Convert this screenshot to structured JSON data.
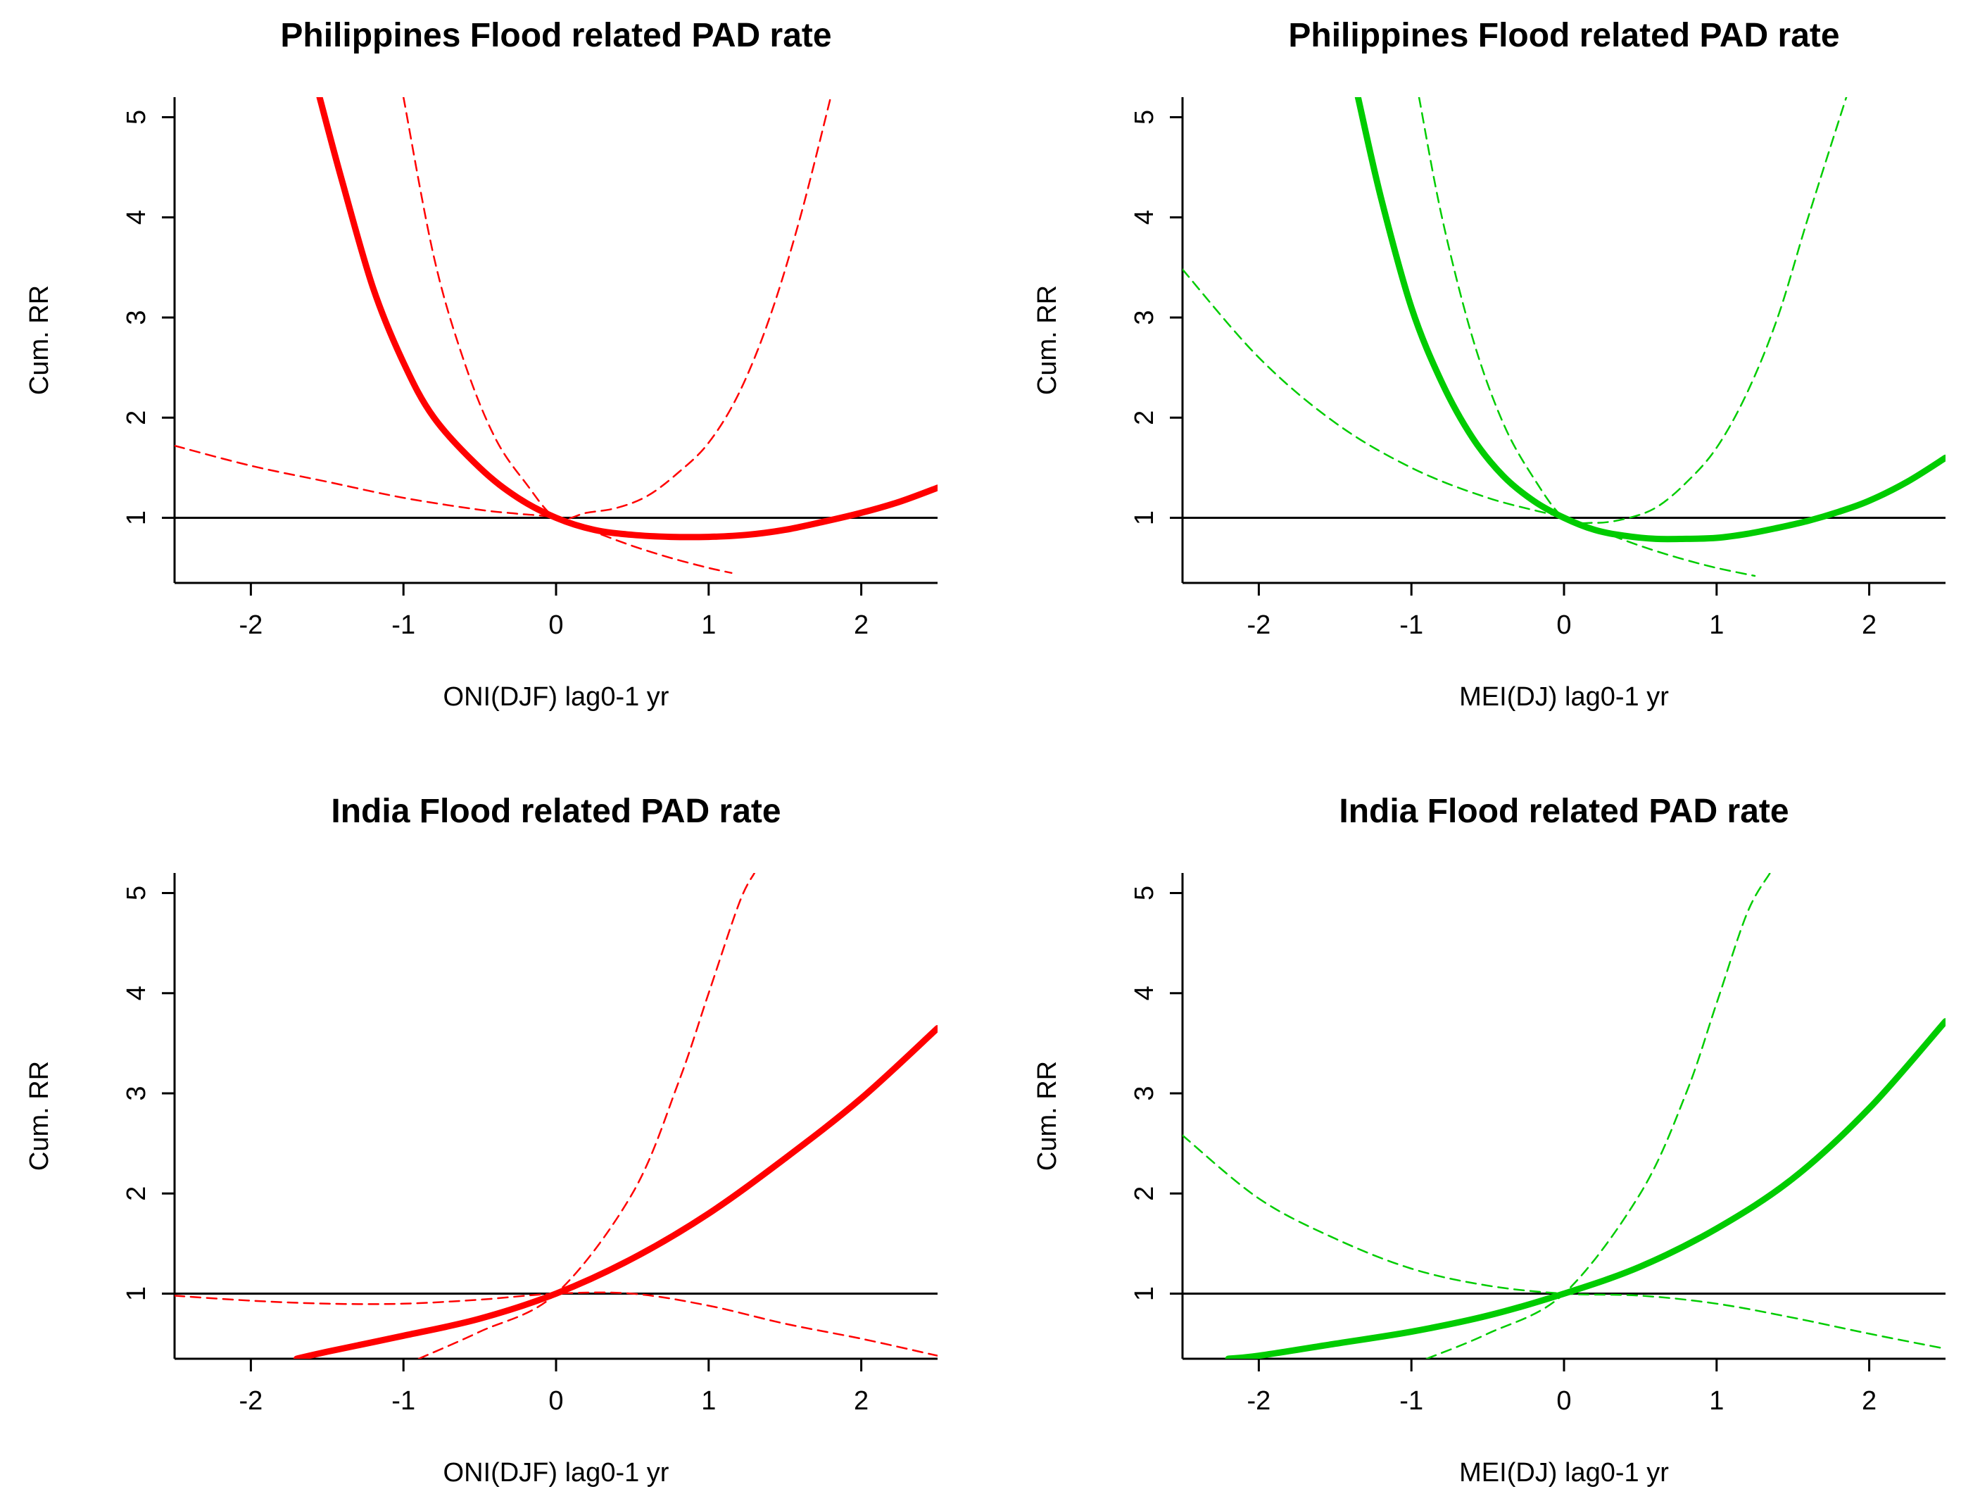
{
  "chart_data": [
    {
      "type": "line",
      "title": "Philippines Flood related PAD rate",
      "xlabel": "ONI(DJF) lag0-1 yr",
      "ylabel": "Cum. RR",
      "xlim": [
        -2.5,
        2.5
      ],
      "ylim": [
        0.35,
        5.2
      ],
      "xticks": [
        -2,
        -1,
        0,
        1,
        2
      ],
      "xtick_labels": [
        "-2",
        "-1",
        "0",
        "1",
        "2"
      ],
      "yticks": [
        1,
        2,
        3,
        4,
        5
      ],
      "ytick_labels": [
        "1",
        "2",
        "3",
        "4",
        "5"
      ],
      "reference_line": 1,
      "color": "#ff0000",
      "series": [
        {
          "name": "RR",
          "style": "solid",
          "x": [
            -1.55,
            -1.4,
            -1.2,
            -1.0,
            -0.8,
            -0.5,
            -0.25,
            0,
            0.25,
            0.5,
            0.75,
            1.0,
            1.25,
            1.5,
            1.75,
            2.0,
            2.25,
            2.5
          ],
          "y": [
            5.2,
            4.35,
            3.3,
            2.55,
            2.0,
            1.5,
            1.2,
            1.0,
            0.88,
            0.83,
            0.81,
            0.81,
            0.83,
            0.88,
            0.96,
            1.05,
            1.16,
            1.3
          ]
        },
        {
          "name": "95% CI lower",
          "style": "dashed",
          "x": [
            -2.5,
            -2.0,
            -1.5,
            -1.0,
            -0.5,
            -0.25,
            0,
            0.25,
            0.5,
            0.75,
            1.0,
            1.15
          ],
          "y": [
            1.72,
            1.52,
            1.36,
            1.2,
            1.08,
            1.04,
            1.0,
            0.86,
            0.72,
            0.6,
            0.5,
            0.45
          ]
        },
        {
          "name": "95% CI upper",
          "style": "dashed",
          "x": [
            -1.0,
            -0.8,
            -0.6,
            -0.4,
            -0.2,
            0,
            0.2,
            0.4,
            0.6,
            0.8,
            1.0,
            1.2,
            1.4,
            1.6,
            1.8
          ],
          "y": [
            5.2,
            3.6,
            2.55,
            1.8,
            1.35,
            1.0,
            1.05,
            1.1,
            1.22,
            1.45,
            1.75,
            2.25,
            3.0,
            4.0,
            5.2
          ]
        }
      ]
    },
    {
      "type": "line",
      "title": "Philippines Flood related PAD rate",
      "xlabel": "MEI(DJ) lag0-1 yr",
      "ylabel": "Cum. RR",
      "xlim": [
        -2.5,
        2.5
      ],
      "ylim": [
        0.35,
        5.2
      ],
      "xticks": [
        -2,
        -1,
        0,
        1,
        2
      ],
      "xtick_labels": [
        "-2",
        "-1",
        "0",
        "1",
        "2"
      ],
      "yticks": [
        1,
        2,
        3,
        4,
        5
      ],
      "ytick_labels": [
        "1",
        "2",
        "3",
        "4",
        "5"
      ],
      "reference_line": 1,
      "color": "#00cc00",
      "series": [
        {
          "name": "RR",
          "style": "solid",
          "x": [
            -1.35,
            -1.2,
            -1.0,
            -0.8,
            -0.6,
            -0.4,
            -0.2,
            0,
            0.2,
            0.4,
            0.6,
            0.8,
            1.0,
            1.2,
            1.4,
            1.6,
            1.8,
            2.0,
            2.25,
            2.5
          ],
          "y": [
            5.2,
            4.2,
            3.1,
            2.35,
            1.8,
            1.42,
            1.17,
            1.0,
            0.88,
            0.82,
            0.79,
            0.79,
            0.8,
            0.84,
            0.9,
            0.97,
            1.06,
            1.17,
            1.36,
            1.6
          ]
        },
        {
          "name": "95% CI lower",
          "style": "dashed",
          "x": [
            -2.5,
            -2.0,
            -1.5,
            -1.0,
            -0.5,
            0,
            0.25,
            0.5,
            0.75,
            1.0,
            1.25
          ],
          "y": [
            3.48,
            2.6,
            1.95,
            1.5,
            1.2,
            1.0,
            0.86,
            0.72,
            0.6,
            0.5,
            0.42
          ]
        },
        {
          "name": "95% CI upper",
          "style": "dashed",
          "x": [
            -0.95,
            -0.8,
            -0.6,
            -0.4,
            -0.2,
            0,
            0.2,
            0.4,
            0.6,
            0.8,
            1.0,
            1.2,
            1.4,
            1.6,
            1.85
          ],
          "y": [
            5.2,
            4.0,
            2.8,
            1.95,
            1.4,
            1.0,
            0.95,
            0.99,
            1.1,
            1.35,
            1.7,
            2.25,
            3.0,
            4.0,
            5.2
          ]
        }
      ]
    },
    {
      "type": "line",
      "title": "India Flood related PAD rate",
      "xlabel": "ONI(DJF) lag0-1 yr",
      "ylabel": "Cum. RR",
      "xlim": [
        -2.5,
        2.5
      ],
      "ylim": [
        0.35,
        5.2
      ],
      "xticks": [
        -2,
        -1,
        0,
        1,
        2
      ],
      "xtick_labels": [
        "-2",
        "-1",
        "0",
        "1",
        "2"
      ],
      "yticks": [
        1,
        2,
        3,
        4,
        5
      ],
      "ytick_labels": [
        "1",
        "2",
        "3",
        "4",
        "5"
      ],
      "reference_line": 1,
      "color": "#ff0000",
      "series": [
        {
          "name": "RR",
          "style": "solid",
          "x": [
            -1.7,
            -1.5,
            -1.0,
            -0.5,
            0,
            0.5,
            1.0,
            1.5,
            2.0,
            2.5
          ],
          "y": [
            0.35,
            0.42,
            0.58,
            0.75,
            1.0,
            1.35,
            1.8,
            2.35,
            2.95,
            3.65
          ]
        },
        {
          "name": "95% CI lower",
          "style": "dashed",
          "x": [
            -2.5,
            -2.0,
            -1.5,
            -1.0,
            -0.5,
            0,
            0.5,
            1.0,
            1.5,
            2.0,
            2.5
          ],
          "y": [
            0.98,
            0.93,
            0.9,
            0.9,
            0.94,
            1.0,
            1.0,
            0.88,
            0.7,
            0.55,
            0.38
          ]
        },
        {
          "name": "95% CI upper",
          "style": "dashed",
          "x": [
            -0.9,
            -0.5,
            0,
            0.5,
            0.8,
            1.0,
            1.2,
            1.3
          ],
          "y": [
            0.35,
            0.62,
            1.0,
            2.0,
            3.1,
            4.0,
            4.9,
            5.2
          ]
        }
      ]
    },
    {
      "type": "line",
      "title": "India Flood related PAD rate",
      "xlabel": "MEI(DJ) lag0-1 yr",
      "ylabel": "Cum. RR",
      "xlim": [
        -2.5,
        2.5
      ],
      "ylim": [
        0.35,
        5.2
      ],
      "xticks": [
        -2,
        -1,
        0,
        1,
        2
      ],
      "xtick_labels": [
        "-2",
        "-1",
        "0",
        "1",
        "2"
      ],
      "yticks": [
        1,
        2,
        3,
        4,
        5
      ],
      "ytick_labels": [
        "1",
        "2",
        "3",
        "4",
        "5"
      ],
      "reference_line": 1,
      "color": "#00cc00",
      "series": [
        {
          "name": "RR",
          "style": "solid",
          "x": [
            -2.2,
            -2.0,
            -1.5,
            -1.0,
            -0.5,
            0,
            0.5,
            1.0,
            1.5,
            2.0,
            2.5
          ],
          "y": [
            0.35,
            0.38,
            0.5,
            0.62,
            0.78,
            1.0,
            1.27,
            1.65,
            2.15,
            2.85,
            3.72
          ]
        },
        {
          "name": "95% CI lower",
          "style": "dashed",
          "x": [
            -2.5,
            -2.0,
            -1.5,
            -1.0,
            -0.5,
            0,
            0.5,
            1.0,
            1.5,
            2.0,
            2.5
          ],
          "y": [
            2.58,
            1.95,
            1.55,
            1.25,
            1.08,
            1.0,
            0.98,
            0.9,
            0.76,
            0.6,
            0.45
          ]
        },
        {
          "name": "95% CI upper",
          "style": "dashed",
          "x": [
            -0.9,
            -0.5,
            0,
            0.5,
            0.8,
            1.0,
            1.2,
            1.35
          ],
          "y": [
            0.35,
            0.6,
            1.0,
            2.0,
            3.0,
            3.9,
            4.8,
            5.2
          ]
        }
      ]
    }
  ]
}
